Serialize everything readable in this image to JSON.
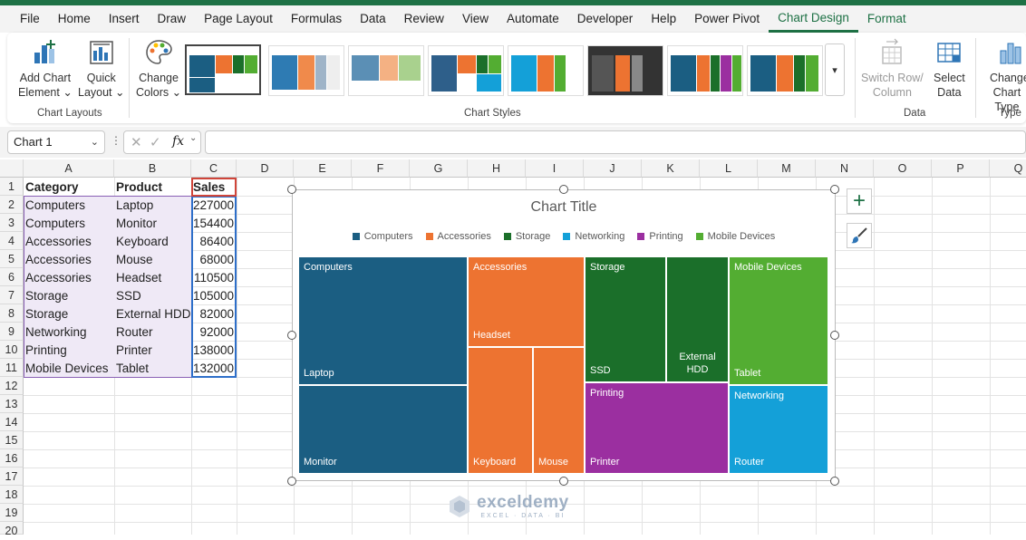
{
  "tabs": [
    "File",
    "Home",
    "Insert",
    "Draw",
    "Page Layout",
    "Formulas",
    "Data",
    "Review",
    "View",
    "Automate",
    "Developer",
    "Help",
    "Power Pivot",
    "Chart Design",
    "Format"
  ],
  "ribbon": {
    "add_chart_element": [
      "Add Chart",
      "Element"
    ],
    "quick_layout": [
      "Quick",
      "Layout"
    ],
    "change_colors": [
      "Change",
      "Colors"
    ],
    "chart_layouts_label": "Chart Layouts",
    "chart_styles_label": "Chart Styles",
    "switch_row_column": [
      "Switch Row/",
      "Column"
    ],
    "select_data": [
      "Select",
      "Data"
    ],
    "data_label": "Data",
    "change_chart_type": [
      "Change",
      "Chart Type"
    ],
    "type_label": "Type"
  },
  "formula": {
    "name_box": "Chart 1",
    "fx": "fx",
    "value": ""
  },
  "columns": [
    "A",
    "B",
    "C",
    "D",
    "E",
    "F",
    "G",
    "H",
    "I",
    "J",
    "K",
    "L",
    "M",
    "N",
    "O",
    "P",
    "Q"
  ],
  "rows": [
    "1",
    "2",
    "3",
    "4",
    "5",
    "6",
    "7",
    "8",
    "9",
    "10",
    "11",
    "12",
    "13",
    "14",
    "15",
    "16",
    "17",
    "18",
    "19",
    "20"
  ],
  "table": {
    "headers": [
      "Category",
      "Product",
      "Sales"
    ],
    "rows": [
      [
        "Computers",
        "Laptop",
        "227000"
      ],
      [
        "Computers",
        "Monitor",
        "154400"
      ],
      [
        "Accessories",
        "Keyboard",
        "86400"
      ],
      [
        "Accessories",
        "Mouse",
        "68000"
      ],
      [
        "Accessories",
        "Headset",
        "110500"
      ],
      [
        "Storage",
        "SSD",
        "105000"
      ],
      [
        "Storage",
        "External HDD",
        "82000"
      ],
      [
        "Networking",
        "Router",
        "92000"
      ],
      [
        "Printing",
        "Printer",
        "138000"
      ],
      [
        "Mobile Devices",
        "Tablet",
        "132000"
      ]
    ]
  },
  "chart": {
    "title": "Chart Title",
    "legend": [
      {
        "name": "Computers",
        "color": "#1b5e82"
      },
      {
        "name": "Accessories",
        "color": "#ed7331"
      },
      {
        "name": "Storage",
        "color": "#1b6f2a"
      },
      {
        "name": "Networking",
        "color": "#14a0d8"
      },
      {
        "name": "Printing",
        "color": "#9b2fa0"
      },
      {
        "name": "Mobile Devices",
        "color": "#53ad32"
      }
    ],
    "tiles": {
      "computers": "Computers",
      "laptop": "Laptop",
      "monitor": "Monitor",
      "accessories": "Accessories",
      "headset": "Headset",
      "keyboard": "Keyboard",
      "mouse": "Mouse",
      "storage": "Storage",
      "ssd": "SSD",
      "external_hdd": "External HDD",
      "printing": "Printing",
      "printer": "Printer",
      "mobile_devices": "Mobile Devices",
      "tablet": "Tablet",
      "networking": "Networking",
      "router": "Router"
    }
  },
  "chart_data": {
    "type": "treemap",
    "title": "Chart Title",
    "series": [
      {
        "name": "Computers",
        "categories": [
          "Laptop",
          "Monitor"
        ],
        "values": [
          227000,
          154400
        ]
      },
      {
        "name": "Accessories",
        "categories": [
          "Keyboard",
          "Mouse",
          "Headset"
        ],
        "values": [
          86400,
          68000,
          110500
        ]
      },
      {
        "name": "Storage",
        "categories": [
          "SSD",
          "External HDD"
        ],
        "values": [
          105000,
          82000
        ]
      },
      {
        "name": "Networking",
        "categories": [
          "Router"
        ],
        "values": [
          92000
        ]
      },
      {
        "name": "Printing",
        "categories": [
          "Printer"
        ],
        "values": [
          138000
        ]
      },
      {
        "name": "Mobile Devices",
        "categories": [
          "Tablet"
        ],
        "values": [
          132000
        ]
      }
    ],
    "legend_position": "top"
  },
  "watermark": {
    "name": "exceldemy",
    "tag": "EXCEL · DATA · BI"
  }
}
